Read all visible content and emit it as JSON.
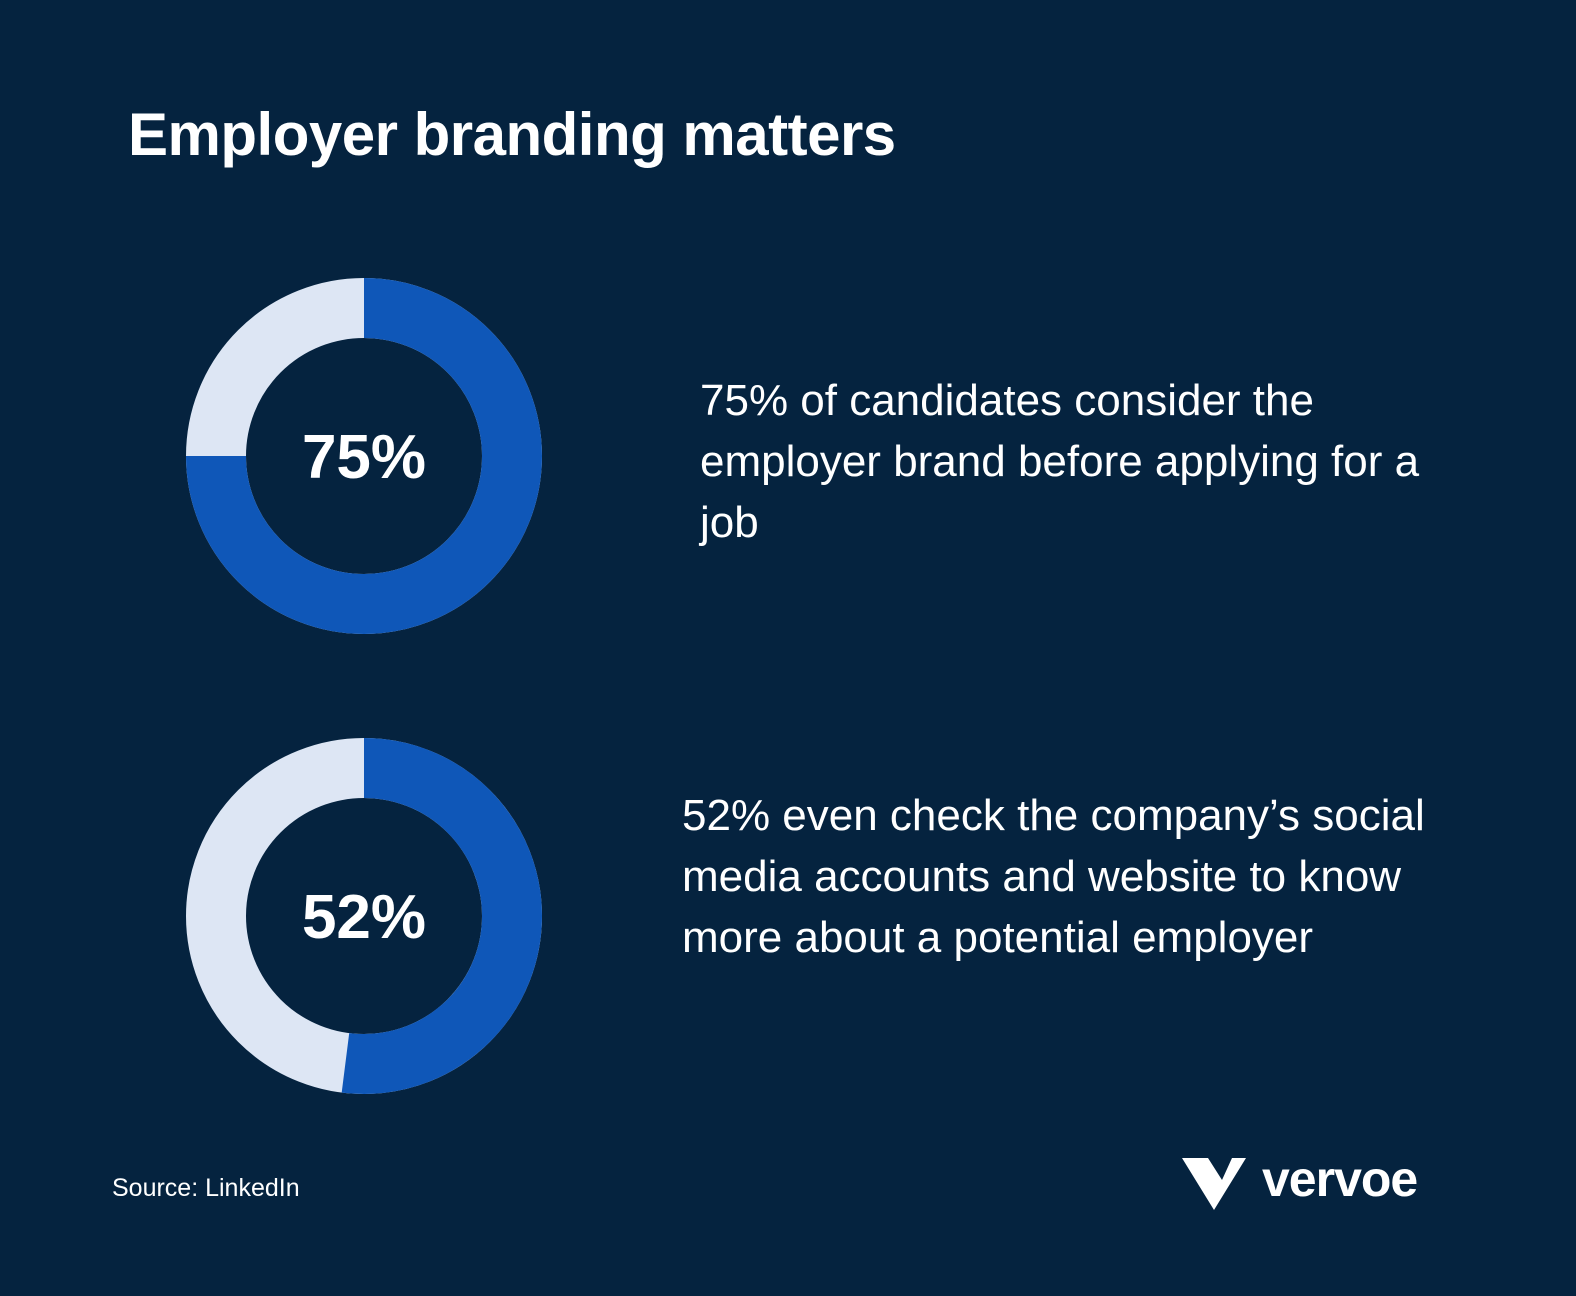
{
  "title": "Employer branding matters",
  "chart_data": [
    {
      "type": "donut",
      "values": [
        75
      ],
      "value_labels": [
        "75%"
      ],
      "color": "#0f57b8",
      "track_color": "#dde6f4",
      "annotation": "75% of candidates consider the employer brand before applying for a job"
    },
    {
      "type": "donut",
      "values": [
        52
      ],
      "value_labels": [
        "52%"
      ],
      "color": "#0f57b8",
      "track_color": "#dde6f4",
      "annotation": "52% even check the company’s social media accounts and website to know more about a potential employer"
    }
  ],
  "source": "Source: LinkedIn",
  "logo": "vervoe"
}
